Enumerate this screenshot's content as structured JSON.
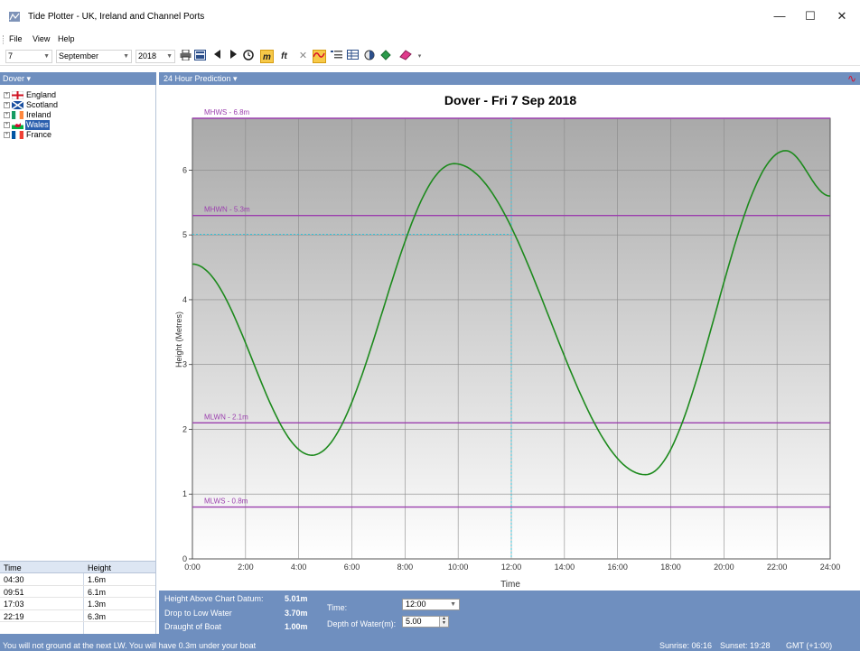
{
  "window": {
    "title": "Tide Plotter - UK, Ireland and Channel Ports",
    "minimize": "—",
    "maximize": "☐",
    "close": "✕"
  },
  "menu": [
    "File",
    "View",
    "Help"
  ],
  "toolbar": {
    "day": "7",
    "month": "September",
    "year": "2018",
    "icons": [
      "print-icon",
      "preview-icon",
      "prev-icon",
      "next-icon",
      "clock-icon",
      "metres-icon",
      "feet-icon",
      "cross-icon",
      "wave-icon",
      "list-icon",
      "table-icon",
      "moon-icon",
      "refresh-icon",
      "eraser-icon"
    ]
  },
  "left_panel": {
    "header": "Dover ▾",
    "tree": [
      {
        "label": "England",
        "selected": false,
        "flag": "england"
      },
      {
        "label": "Scotland",
        "selected": false,
        "flag": "scotland"
      },
      {
        "label": "Ireland",
        "selected": false,
        "flag": "ireland"
      },
      {
        "label": "Wales",
        "selected": true,
        "flag": "wales"
      },
      {
        "label": "France",
        "selected": false,
        "flag": "france"
      }
    ]
  },
  "tide_table": {
    "headers": [
      "Time",
      "Height"
    ],
    "rows": [
      [
        "04:30",
        "1.6m"
      ],
      [
        "09:51",
        "6.1m"
      ],
      [
        "17:03",
        "1.3m"
      ],
      [
        "22:19",
        "6.3m"
      ]
    ]
  },
  "chart_panel": {
    "header": "24 Hour Prediction ▾",
    "header_icon": "∿"
  },
  "chart_data": {
    "type": "line",
    "title": "Dover - Fri 7 Sep 2018",
    "xlabel": "Time",
    "ylabel": "Height (Metres)",
    "xlim": [
      0,
      24
    ],
    "ylim": [
      0,
      6.8
    ],
    "x_ticks": [
      "0:00",
      "2:00",
      "4:00",
      "6:00",
      "8:00",
      "10:00",
      "12:00",
      "14:00",
      "16:00",
      "18:00",
      "20:00",
      "22:00",
      "24:00"
    ],
    "y_ticks": [
      "0",
      "1",
      "2",
      "3",
      "4",
      "5",
      "6"
    ],
    "grid": true,
    "series_color": "#1d8a1d",
    "reference_color": "#9b3fae",
    "reference_lines": [
      {
        "label": "MHWS - 6.8m",
        "value": 6.8
      },
      {
        "label": "MHWN - 5.3m",
        "value": 5.3
      },
      {
        "label": "MLWN - 2.1m",
        "value": 2.1
      },
      {
        "label": "MLWS - 0.8m",
        "value": 0.8
      }
    ],
    "cursor": {
      "time": 12.0,
      "height": 5.01
    },
    "turning_points": [
      {
        "time": 0.0,
        "height": 4.55
      },
      {
        "time": 4.5,
        "height": 1.6
      },
      {
        "time": 9.85,
        "height": 6.1
      },
      {
        "time": 17.05,
        "height": 1.3
      },
      {
        "time": 22.32,
        "height": 6.3
      },
      {
        "time": 24.0,
        "height": 5.6
      }
    ]
  },
  "bottom_panel": {
    "height_label": "Height Above Chart Datum:",
    "height_value": "5.01m",
    "drop_label": "Drop to Low Water",
    "drop_value": "3.70m",
    "draught_label": "Draught of Boat",
    "draught_value": "1.00m",
    "time_label": "Time:",
    "time_value": "12:00",
    "depth_label": "Depth of Water(m):",
    "depth_value": "5.00"
  },
  "status": {
    "message": "You will not ground at the next LW. You will have 0.3m under your boat",
    "sunrise": "Sunrise: 06:16",
    "sunset": "Sunset: 19:28",
    "timezone": "GMT (+1:00)"
  }
}
